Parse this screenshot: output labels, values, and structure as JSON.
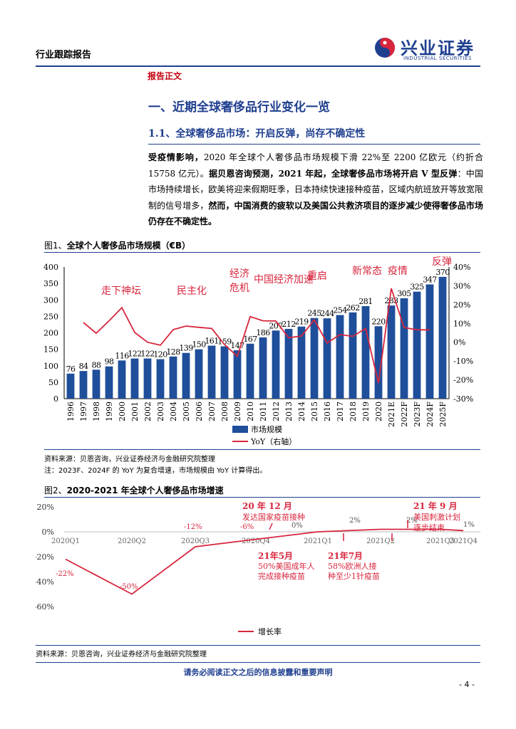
{
  "header": {
    "doc_type": "行业跟踪报告",
    "logo_cn": "兴业证券",
    "logo_en": "INDUSTRIAL SECURITIES"
  },
  "section_label": "报告正文",
  "section_title": "一、近期全球奢侈品行业变化一览",
  "subsection_title": "1.1、全球奢侈品市场：开启反弹，尚存不确定性",
  "paragraph": {
    "p1_bold": "受疫情影响，",
    "p1": "2020 年全球个人奢侈品市场规模下滑 22%至 2200 亿欧元（约折合 15758 亿元）。",
    "p2_bold": "据贝恩咨询预测，2021 年起，全球奢侈品市场将开启 V 型反弹",
    "p3": "：中国市场持续增长，欧美将迎来假期旺季，日本持续快速接种疫苗，区域内航班放开等放宽限制的信号增多，",
    "p4_bold": "然而，中国消费的疲软以及美国公共救济项目的逐步减少使得奢侈品市场仍存在不确定性。"
  },
  "figure1": {
    "num": "图1、",
    "title": "全球个人奢侈品市场规模（€B）",
    "source": "资料来源：贝恩咨询，兴业证券经济与金融研究院整理",
    "note": "注：2023F、2024F 的 YoY 为复合增速，市场规模由 YoY 计算得出。",
    "legend_bar": "市场规模",
    "legend_line": "YoY（右轴）"
  },
  "figure2": {
    "num": "图2、",
    "title": "2020-2021 年全球个人奢侈品市场增速",
    "source": "资料来源：贝恩咨询，兴业证券经济与金融研究院整理",
    "legend": "增长率"
  },
  "footer": {
    "disclaimer": "请务必阅读正文之后的信息披露和重要声明",
    "page": "- 4 -"
  },
  "colors": {
    "navy": "#1f3f8f",
    "bar": "#1f4e9a",
    "red": "#d7263d"
  },
  "chart_data": [
    {
      "type": "bar",
      "categories": [
        "1996",
        "1997",
        "1998",
        "1999",
        "2000",
        "2001",
        "2002",
        "2003",
        "2004",
        "2005",
        "2006",
        "2007",
        "2008",
        "2009",
        "2010",
        "2011",
        "2012",
        "2013",
        "2014",
        "2015",
        "2016",
        "2017",
        "2018",
        "2019",
        "2020",
        "2021E",
        "2022F",
        "2023F",
        "2024F",
        "2025F"
      ],
      "series": [
        {
          "name": "市场规模",
          "values": [
            76,
            84,
            88,
            98,
            116,
            122,
            122,
            120,
            128,
            139,
            150,
            161,
            159,
            147,
            167,
            186,
            207,
            212,
            219,
            245,
            244,
            254,
            262,
            281,
            220,
            283,
            305,
            325,
            347,
            370
          ]
        },
        {
          "name": "YoY（右轴）",
          "axis": "right",
          "values": [
            null,
            10.5,
            4.8,
            11.4,
            18.4,
            5.2,
            0,
            -1.6,
            6.7,
            8.6,
            7.9,
            7.3,
            -1.2,
            -7.5,
            13.6,
            11.4,
            11.3,
            2.4,
            3.3,
            11.9,
            -0.4,
            4.1,
            3.1,
            7.3,
            -21.7,
            28.6,
            7.8,
            6.6,
            6.6,
            null
          ]
        }
      ],
      "ylim": [
        0,
        400
      ],
      "yticks": [
        "0",
        "50",
        "100",
        "150",
        "200",
        "250",
        "300",
        "350",
        "400"
      ],
      "y2lim": [
        -30,
        40
      ],
      "y2ticks": [
        "-30%",
        "-20%",
        "-10%",
        "0%",
        "10%",
        "20%",
        "30%",
        "40%"
      ],
      "annotations": [
        "走下神坛",
        "民主化",
        "经济",
        "危机",
        "中国经济加速",
        "重启",
        "新常态",
        "疫情",
        "反弹"
      ]
    },
    {
      "type": "line",
      "categories": [
        "2020Q1",
        "2020Q2",
        "2020Q3",
        "2020Q4",
        "2021Q1",
        "2021Q2",
        "2021Q3",
        "2021Q4"
      ],
      "series": [
        {
          "name": "增长率",
          "values": [
            -22,
            -50,
            -12,
            -6,
            0,
            2,
            2,
            1
          ]
        }
      ],
      "value_labels": [
        "-22%",
        "-50%",
        "-12%",
        "-6%",
        "0%",
        "2%",
        "2%",
        "1%"
      ],
      "ylim": [
        -60,
        20
      ],
      "yticks": [
        "20%",
        "0%",
        "-20%",
        "-40%",
        "-60%"
      ],
      "annotations": [
        {
          "date": "20 年 12 月",
          "text": "发达国家疫苗接种"
        },
        {
          "date": "21年5月",
          "text": "50%美国成年人完成接种疫苗"
        },
        {
          "date": "21年7月",
          "text": "58%欧洲人接种至少1针疫苗"
        },
        {
          "date": "21 年 9 月",
          "text": "美国刺激计划逐步结束"
        }
      ]
    }
  ]
}
